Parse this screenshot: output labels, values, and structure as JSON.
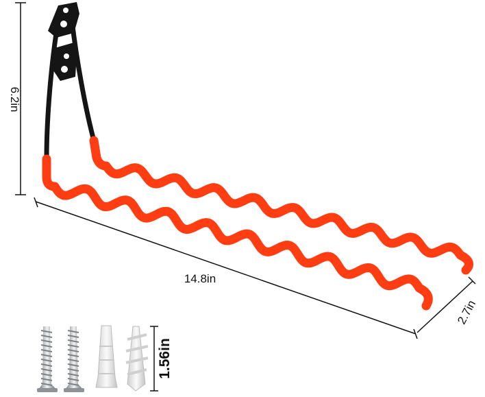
{
  "product": {
    "colors": {
      "coating": "#ff3d12",
      "hook_frame": "#151515",
      "screw": "#b8bcc0",
      "anchor": "#e6e6e6"
    },
    "dimensions": {
      "height": "6.2in",
      "length": "14.8in",
      "width": "2.7in",
      "anchor_length": "1.56in"
    }
  }
}
